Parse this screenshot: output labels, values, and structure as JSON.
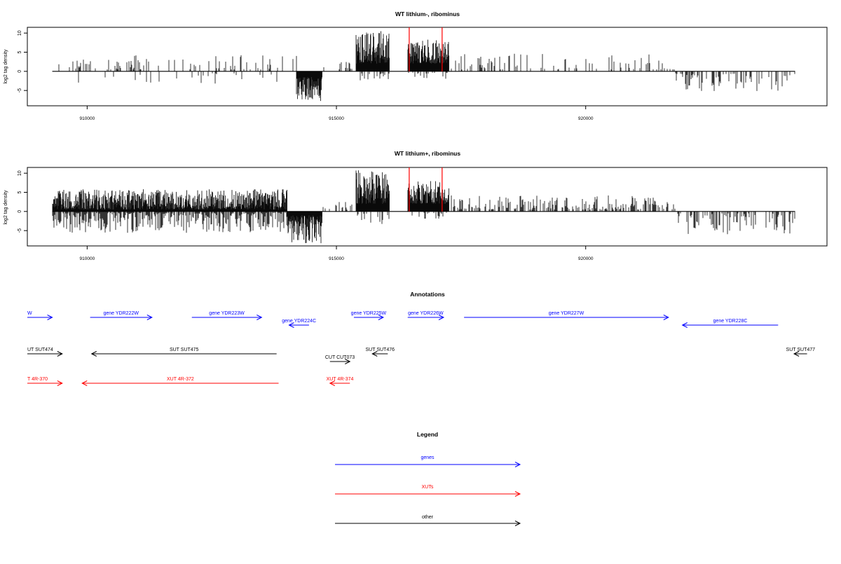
{
  "colors": {
    "gene": "#0000ff",
    "xut": "#ff0000",
    "other": "#000000",
    "marker": "#ff0000",
    "bar": "#000000"
  },
  "chart_data": [
    {
      "type": "bar",
      "title": "WT lithium-, ribominus",
      "ylabel": "log2 tag density",
      "xlim": [
        908800,
        924840
      ],
      "ylim": [
        -9,
        11.5
      ],
      "yticks": [
        -5,
        0,
        5,
        10
      ],
      "xticks": [
        910000,
        915000,
        920000
      ],
      "xtick_labels": [
        "910000",
        "915000",
        "920000"
      ],
      "markers": [
        916460,
        917120
      ],
      "regions": [
        {
          "from": 909300,
          "to": 914200,
          "sign": 1,
          "density": 0.22,
          "min": 0.5,
          "max": 4.3
        },
        {
          "from": 909800,
          "to": 913800,
          "sign": -1,
          "density": 0.1,
          "min": 0.5,
          "max": 3.5
        },
        {
          "from": 914200,
          "to": 914700,
          "sign": -1,
          "density": 1.0,
          "min": 1.5,
          "max": 7.8
        },
        {
          "from": 914700,
          "to": 915350,
          "sign": 1,
          "density": 0.15,
          "min": 0.5,
          "max": 2.5
        },
        {
          "from": 915400,
          "to": 916050,
          "sign": 1,
          "density": 1.0,
          "min": 2.0,
          "max": 10.5
        },
        {
          "from": 915400,
          "to": 916050,
          "sign": -1,
          "density": 0.3,
          "min": 0.5,
          "max": 3.0
        },
        {
          "from": 916430,
          "to": 917250,
          "sign": 1,
          "density": 1.0,
          "min": 2.0,
          "max": 8.5
        },
        {
          "from": 916430,
          "to": 917250,
          "sign": -1,
          "density": 0.3,
          "min": 0.3,
          "max": 2.0
        },
        {
          "from": 917300,
          "to": 921800,
          "sign": 1,
          "density": 0.25,
          "min": 0.5,
          "max": 4.7
        },
        {
          "from": 921800,
          "to": 924200,
          "sign": -1,
          "density": 0.35,
          "min": 0.5,
          "max": 5.3
        }
      ]
    },
    {
      "type": "bar",
      "title": "WT lithium+, ribominus",
      "ylabel": "log2 tag density",
      "xlim": [
        908800,
        924840
      ],
      "ylim": [
        -9,
        11.5
      ],
      "yticks": [
        -5,
        0,
        5,
        10
      ],
      "xticks": [
        910000,
        915000,
        920000
      ],
      "xtick_labels": [
        "910000",
        "915000",
        "920000"
      ],
      "markers": [
        916460,
        917120
      ],
      "regions": [
        {
          "from": 909300,
          "to": 914000,
          "sign": 1,
          "density": 1.0,
          "min": 0.5,
          "max": 5.8
        },
        {
          "from": 909300,
          "to": 914000,
          "sign": -1,
          "density": 0.8,
          "min": 0.3,
          "max": 5.6
        },
        {
          "from": 914000,
          "to": 914700,
          "sign": -1,
          "density": 1.0,
          "min": 1.0,
          "max": 8.3
        },
        {
          "from": 914700,
          "to": 915350,
          "sign": 1,
          "density": 0.2,
          "min": 0.5,
          "max": 2.5
        },
        {
          "from": 915400,
          "to": 916050,
          "sign": 1,
          "density": 1.0,
          "min": 2.0,
          "max": 11.0
        },
        {
          "from": 915400,
          "to": 916050,
          "sign": -1,
          "density": 0.4,
          "min": 0.5,
          "max": 3.5
        },
        {
          "from": 916430,
          "to": 917250,
          "sign": 1,
          "density": 1.0,
          "min": 2.0,
          "max": 8.0
        },
        {
          "from": 916430,
          "to": 917250,
          "sign": -1,
          "density": 0.3,
          "min": 0.3,
          "max": 2.0
        },
        {
          "from": 917300,
          "to": 921800,
          "sign": 1,
          "density": 0.5,
          "min": 0.5,
          "max": 4.2
        },
        {
          "from": 921800,
          "to": 924200,
          "sign": -1,
          "density": 0.4,
          "min": 0.5,
          "max": 6.0
        }
      ]
    }
  ],
  "annotations": {
    "title": "Annotations",
    "genes": [
      {
        "label": "W",
        "start": 908790,
        "end": 909300,
        "strand": "+"
      },
      {
        "label": "gene YDR222W",
        "start": 910060,
        "end": 911300,
        "strand": "+"
      },
      {
        "label": "gene YDR223W",
        "start": 912100,
        "end": 913500,
        "strand": "+"
      },
      {
        "label": "gene YDR224C",
        "start": 914050,
        "end": 914450,
        "strand": "-"
      },
      {
        "label": "gene YDR225W",
        "start": 915350,
        "end": 915940,
        "strand": "+"
      },
      {
        "label": "gene YDR226W",
        "start": 916430,
        "end": 917150,
        "strand": "+"
      },
      {
        "label": "gene YDR227W",
        "start": 917560,
        "end": 921660,
        "strand": "+"
      },
      {
        "label": "gene YDR228C",
        "start": 921940,
        "end": 923860,
        "strand": "-"
      }
    ],
    "others": [
      {
        "label": "UT SUT474",
        "start": 908790,
        "end": 909500,
        "strand": "+"
      },
      {
        "label": "SUT SUT475",
        "start": 910090,
        "end": 913800,
        "strand": "-"
      },
      {
        "label": "CUT CUT073",
        "start": 914870,
        "end": 915270,
        "strand": "+"
      },
      {
        "label": "SUT SUT476",
        "start": 915720,
        "end": 916030,
        "strand": "-"
      },
      {
        "label": "SUT SUT477",
        "start": 924180,
        "end": 924440,
        "strand": "-"
      }
    ],
    "xuts": [
      {
        "label": "T 4R-370",
        "start": 908790,
        "end": 909500,
        "strand": "+"
      },
      {
        "label": "XUT 4R-372",
        "start": 909900,
        "end": 913840,
        "strand": "-"
      },
      {
        "label": "XUT 4R-374",
        "start": 914870,
        "end": 915270,
        "strand": "-"
      }
    ]
  },
  "legend": {
    "title": "Legend",
    "items": [
      {
        "label": "genes",
        "type": "gene"
      },
      {
        "label": "XUTs",
        "type": "xut"
      },
      {
        "label": "other",
        "type": "other"
      }
    ]
  }
}
